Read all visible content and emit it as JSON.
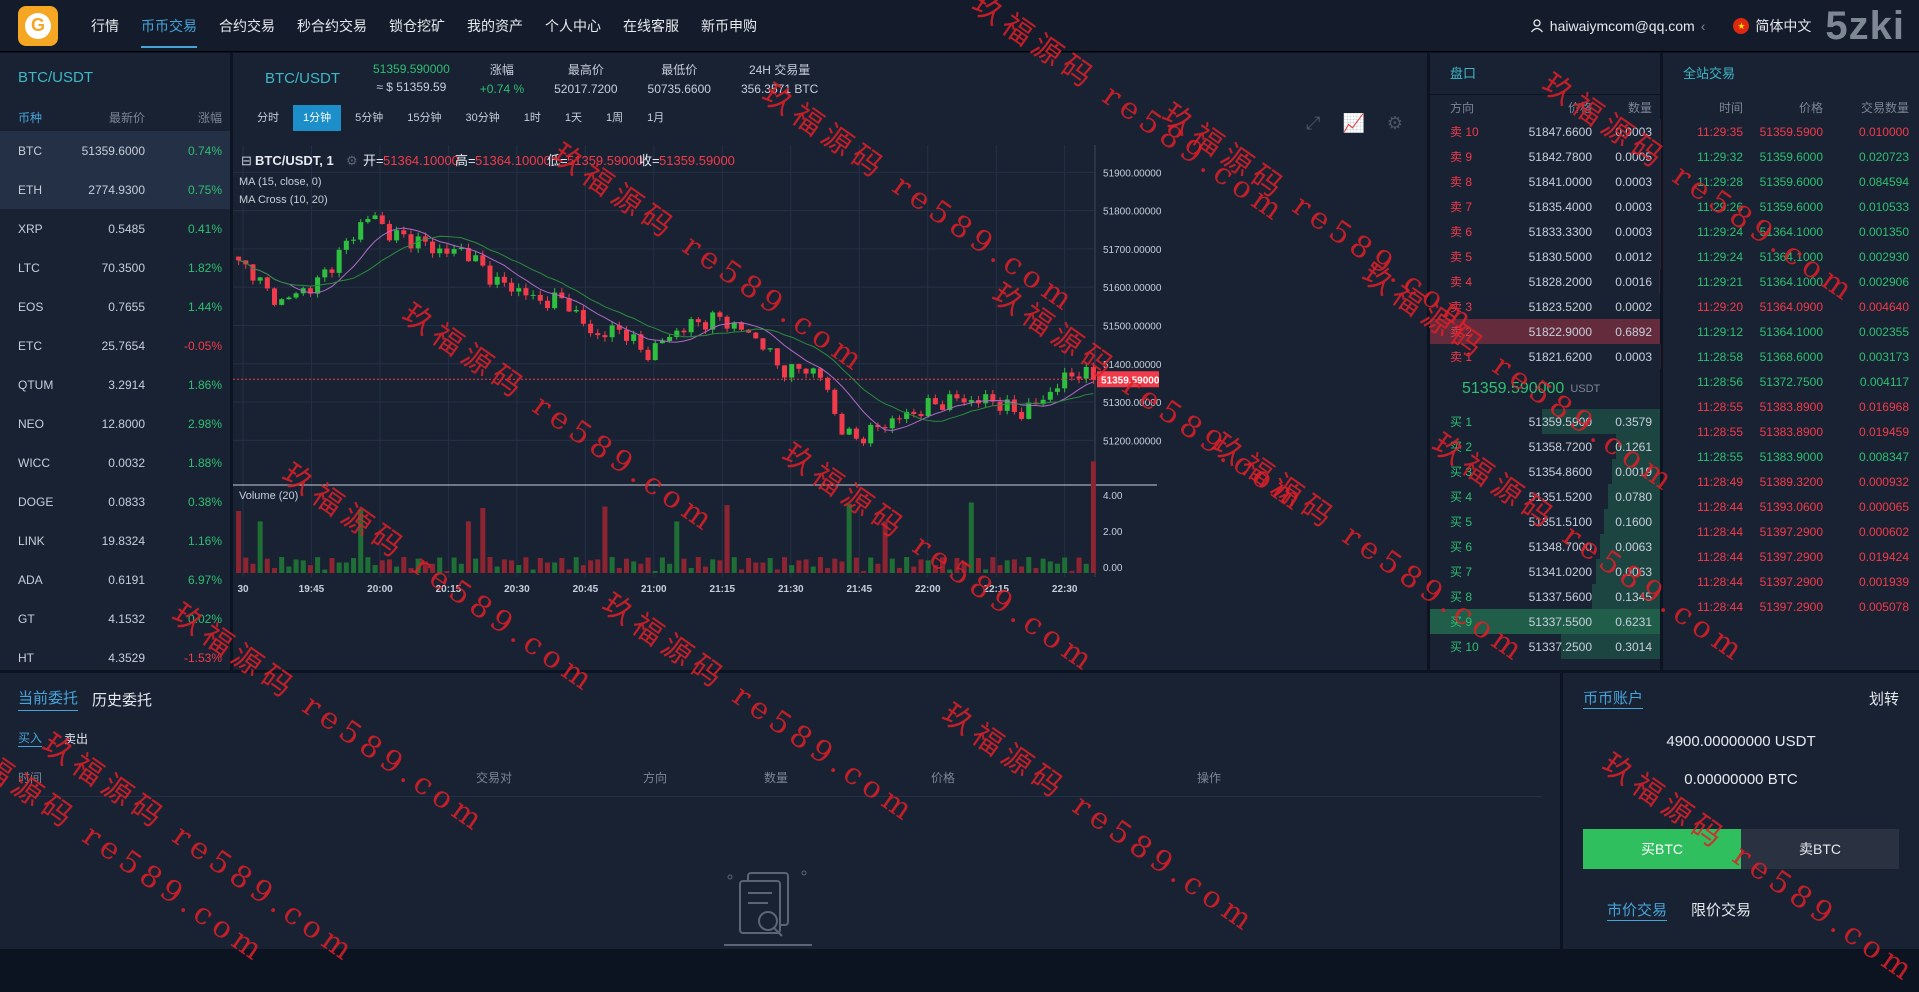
{
  "nav": {
    "items": [
      "行情",
      "币币交易",
      "合约交易",
      "秒合约交易",
      "锁仓挖矿",
      "我的资产",
      "个人中心",
      "在线客服",
      "新币申购"
    ],
    "active_index": 1
  },
  "user": {
    "email": "haiwaiymcom@qq.com",
    "lang": "简体中文",
    "brand_watermark": "5zki"
  },
  "market_list": {
    "title": "BTC/USDT",
    "headers": [
      "币种",
      "最新价",
      "涨幅"
    ],
    "rows": [
      {
        "coin": "BTC",
        "price": "51359.6000",
        "change": "0.74%"
      },
      {
        "coin": "ETH",
        "price": "2774.9300",
        "change": "0.75%"
      },
      {
        "coin": "XRP",
        "price": "0.5485",
        "change": "0.41%"
      },
      {
        "coin": "LTC",
        "price": "70.3500",
        "change": "1.82%"
      },
      {
        "coin": "EOS",
        "price": "0.7655",
        "change": "1.44%"
      },
      {
        "coin": "ETC",
        "price": "25.7654",
        "change": "-0.05%"
      },
      {
        "coin": "QTUM",
        "price": "3.2914",
        "change": "1.86%"
      },
      {
        "coin": "NEO",
        "price": "12.8000",
        "change": "2.98%"
      },
      {
        "coin": "WICC",
        "price": "0.0032",
        "change": "1.88%"
      },
      {
        "coin": "DOGE",
        "price": "0.0833",
        "change": "0.38%"
      },
      {
        "coin": "LINK",
        "price": "19.8324",
        "change": "1.16%"
      },
      {
        "coin": "ADA",
        "price": "0.6191",
        "change": "6.97%"
      },
      {
        "coin": "GT",
        "price": "4.1532",
        "change": "0.02%"
      },
      {
        "coin": "HT",
        "price": "4.3529",
        "change": "-1.53%"
      }
    ]
  },
  "ticker": {
    "symbol": "BTC/USDT",
    "last_price": "51359.590000",
    "last_price_usd": "≈ $ 51359.59",
    "change_label": "涨幅",
    "change_value": "+0.74 %",
    "high_label": "最高价",
    "high_value": "52017.7200",
    "low_label": "最低价",
    "low_value": "50735.6600",
    "volume_label": "24H 交易量",
    "volume_value": "356.3571 BTC"
  },
  "intervals": {
    "items": [
      "分时",
      "1分钟",
      "5分钟",
      "15分钟",
      "30分钟",
      "1时",
      "1天",
      "1周",
      "1月"
    ],
    "active_index": 1
  },
  "chart_legend": {
    "symbol": "BTC/USDT, 1",
    "open_label": "开=",
    "open_value": "51364.10000",
    "high_label": "高=",
    "high_value": "51364.10000",
    "low_label": "低=",
    "low_value": "51359.59000",
    "close_label": "收=",
    "close_value": "51359.59000",
    "ma": "MA (15, close, 0)",
    "ma_cross": "MA Cross (10, 20)",
    "volume": "Volume (20)",
    "price_tag": "51359.59000"
  },
  "chart_data": {
    "type": "candlestick",
    "y_ticks": [
      "51900.00000",
      "51800.00000",
      "51700.00000",
      "51600.00000",
      "51500.00000",
      "51400.00000",
      "51300.00000",
      "51200.00000"
    ],
    "y_range": [
      51120,
      51940
    ],
    "volume_ticks": [
      "4.00",
      "2.00",
      "0.00"
    ],
    "x_ticks": [
      "30",
      "19:45",
      "20:00",
      "20:15",
      "20:30",
      "20:45",
      "21:00",
      "21:15",
      "21:30",
      "21:45",
      "22:00",
      "22:15",
      "22:30"
    ],
    "close_path": [
      51660,
      51640,
      51580,
      51560,
      51590,
      51600,
      51650,
      51700,
      51760,
      51790,
      51740,
      51730,
      51720,
      51700,
      51690,
      51700,
      51660,
      51620,
      51600,
      51590,
      51560,
      51570,
      51560,
      51500,
      51470,
      51490,
      51480,
      51420,
      51450,
      51480,
      51500,
      51510,
      51520,
      51500,
      51480,
      51450,
      51390,
      51380,
      51390,
      51360,
      51240,
      51200,
      51220,
      51240,
      51260,
      51270,
      51290,
      51300,
      51310,
      51300,
      51310,
      51290,
      51270,
      51290,
      51320,
      51360,
      51380,
      51360
    ]
  },
  "orderbook": {
    "title": "盘口",
    "headers": [
      "方向",
      "价格",
      "数量"
    ],
    "asks": [
      {
        "side": "卖 10",
        "price": "51847.6600",
        "qty": "0.0003"
      },
      {
        "side": "卖 9",
        "price": "51842.7800",
        "qty": "0.0005"
      },
      {
        "side": "卖 8",
        "price": "51841.0000",
        "qty": "0.0003"
      },
      {
        "side": "卖 7",
        "price": "51835.4000",
        "qty": "0.0003"
      },
      {
        "side": "卖 6",
        "price": "51833.3300",
        "qty": "0.0003"
      },
      {
        "side": "卖 5",
        "price": "51830.5000",
        "qty": "0.0012"
      },
      {
        "side": "卖 4",
        "price": "51828.2000",
        "qty": "0.0016"
      },
      {
        "side": "卖 3",
        "price": "51823.5200",
        "qty": "0.0002"
      },
      {
        "side": "卖 2",
        "price": "51822.9000",
        "qty": "0.6892"
      },
      {
        "side": "卖 1",
        "price": "51821.6200",
        "qty": "0.0003"
      }
    ],
    "last_price": "51359.590000",
    "last_unit": "USDT",
    "bids": [
      {
        "side": "买 1",
        "price": "51359.5900",
        "qty": "0.3579"
      },
      {
        "side": "买 2",
        "price": "51358.7200",
        "qty": "0.1261"
      },
      {
        "side": "买 3",
        "price": "51354.8600",
        "qty": "0.0019"
      },
      {
        "side": "买 4",
        "price": "51351.5200",
        "qty": "0.0780"
      },
      {
        "side": "买 5",
        "price": "51351.5100",
        "qty": "0.1600"
      },
      {
        "side": "买 6",
        "price": "51348.7000",
        "qty": "0.0063"
      },
      {
        "side": "买 7",
        "price": "51341.0200",
        "qty": "0.0063"
      },
      {
        "side": "买 8",
        "price": "51337.5600",
        "qty": "0.1345"
      },
      {
        "side": "买 9",
        "price": "51337.5500",
        "qty": "0.6231"
      },
      {
        "side": "买 10",
        "price": "51337.2500",
        "qty": "0.3014"
      }
    ]
  },
  "trades": {
    "title": "全站交易",
    "headers": [
      "时间",
      "价格",
      "交易数量"
    ],
    "rows": [
      {
        "time": "11:29:35",
        "price": "51359.5900",
        "qty": "0.010000",
        "dir": "down"
      },
      {
        "time": "11:29:32",
        "price": "51359.6000",
        "qty": "0.020723",
        "dir": "up"
      },
      {
        "time": "11:29:28",
        "price": "51359.6000",
        "qty": "0.084594",
        "dir": "up"
      },
      {
        "time": "11:29:26",
        "price": "51359.6000",
        "qty": "0.010533",
        "dir": "up"
      },
      {
        "time": "11:29:24",
        "price": "51364.1000",
        "qty": "0.001350",
        "dir": "up"
      },
      {
        "time": "11:29:24",
        "price": "51364.1000",
        "qty": "0.002930",
        "dir": "up"
      },
      {
        "time": "11:29:21",
        "price": "51364.1000",
        "qty": "0.002906",
        "dir": "up"
      },
      {
        "time": "11:29:20",
        "price": "51364.0900",
        "qty": "0.004640",
        "dir": "down"
      },
      {
        "time": "11:29:12",
        "price": "51364.1000",
        "qty": "0.002355",
        "dir": "up"
      },
      {
        "time": "11:28:58",
        "price": "51368.6000",
        "qty": "0.003173",
        "dir": "up"
      },
      {
        "time": "11:28:56",
        "price": "51372.7500",
        "qty": "0.004117",
        "dir": "up"
      },
      {
        "time": "11:28:55",
        "price": "51383.8900",
        "qty": "0.016968",
        "dir": "down"
      },
      {
        "time": "11:28:55",
        "price": "51383.8900",
        "qty": "0.019459",
        "dir": "down"
      },
      {
        "time": "11:28:55",
        "price": "51383.9000",
        "qty": "0.008347",
        "dir": "up"
      },
      {
        "time": "11:28:49",
        "price": "51389.3200",
        "qty": "0.000932",
        "dir": "down"
      },
      {
        "time": "11:28:44",
        "price": "51393.0600",
        "qty": "0.000065",
        "dir": "down"
      },
      {
        "time": "11:28:44",
        "price": "51397.2900",
        "qty": "0.000602",
        "dir": "down"
      },
      {
        "time": "11:28:44",
        "price": "51397.2900",
        "qty": "0.019424",
        "dir": "down"
      },
      {
        "time": "11:28:44",
        "price": "51397.2900",
        "qty": "0.001939",
        "dir": "down"
      },
      {
        "time": "11:28:44",
        "price": "51397.2900",
        "qty": "0.005078",
        "dir": "down"
      }
    ]
  },
  "orders": {
    "tabs": [
      "当前委托",
      "历史委托"
    ],
    "sub_tabs": [
      "买入",
      "卖出"
    ],
    "columns": [
      "时间",
      "交易对",
      "方向",
      "数量",
      "价格",
      "操作"
    ]
  },
  "account": {
    "title": "币币账户",
    "transfer": "划转",
    "usdt_balance": "4900.00000000 USDT",
    "btc_balance": "0.00000000 BTC",
    "buy_label": "买BTC",
    "sell_label": "卖BTC",
    "market_tab": "市价交易",
    "limit_tab": "限价交易"
  },
  "watermark": {
    "text": "玖福源码 re589.com",
    "color": "#e11e28"
  }
}
